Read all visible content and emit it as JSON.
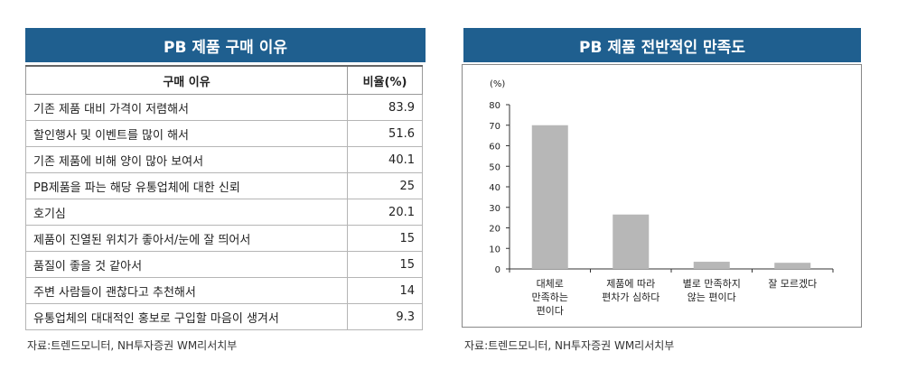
{
  "left_panel": {
    "title": "PB 제품 구매 이유",
    "table": {
      "headers": [
        "구매 이유",
        "비율(%)"
      ],
      "rows": [
        {
          "reason": "기존 제품 대비 가격이 저렴해서",
          "value": "83.9"
        },
        {
          "reason": "할인행사 및 이벤트를 많이 해서",
          "value": "51.6"
        },
        {
          "reason": "기존 제품에 비해 양이 많아 보여서",
          "value": "40.1"
        },
        {
          "reason": "PB제품을 파는 해당 유통업체에 대한 신뢰",
          "value": "25"
        },
        {
          "reason": "호기심",
          "value": "20.1"
        },
        {
          "reason": "제품이 진열된 위치가 좋아서/눈에 잘 띄어서",
          "value": "15"
        },
        {
          "reason": "품질이 좋을 것 같아서",
          "value": "15"
        },
        {
          "reason": "주변 사람들이 괜찮다고 추천해서",
          "value": "14"
        },
        {
          "reason": "유통업체의 대대적인 홍보로 구입할 마음이 생겨서",
          "value": "9.3"
        }
      ]
    },
    "source": "자료:트렌드모니터, NH투자증권 WM리서치부"
  },
  "right_panel": {
    "title": "PB 제품 전반적인 만족도",
    "source": "자료:트렌드모니터, NH투자증권 WM리서치부"
  },
  "chart_data": {
    "type": "bar",
    "title": "PB 제품 전반적인 만족도",
    "unit_label": "(%)",
    "categories": [
      [
        "대체로",
        "만족하는",
        "편이다"
      ],
      [
        "제품에 따라",
        "편차가 심하다"
      ],
      [
        "별로 만족하지",
        "않는 편이다"
      ],
      [
        "잘 모르겠다"
      ]
    ],
    "values": [
      70,
      26.5,
      3.5,
      3
    ],
    "ylim": [
      0,
      80
    ],
    "yticks": [
      0,
      10,
      20,
      30,
      40,
      50,
      60,
      70,
      80
    ],
    "bar_color": "#b7b7b7",
    "grid": false,
    "legend": "none"
  }
}
